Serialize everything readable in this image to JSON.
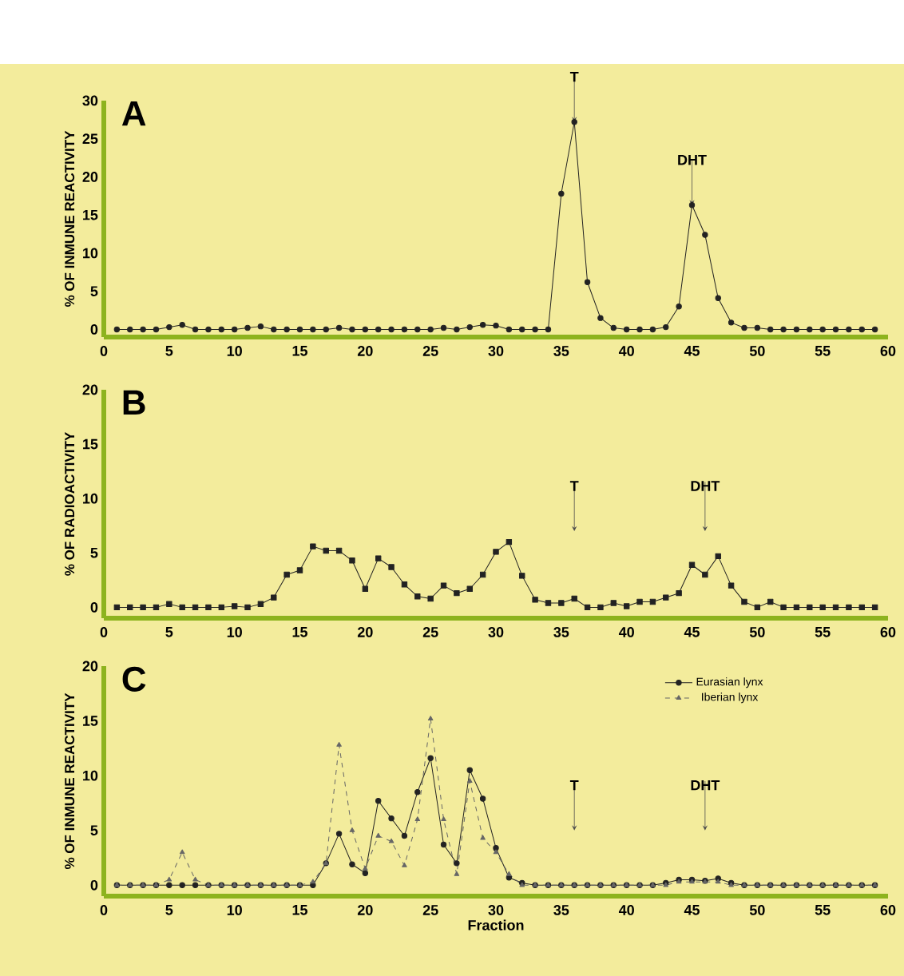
{
  "chart_data": [
    {
      "type": "line",
      "title": "A",
      "ylabel": "% OF INMUNE REACTIVITY",
      "x": [
        1,
        2,
        3,
        4,
        5,
        6,
        7,
        8,
        9,
        10,
        11,
        12,
        13,
        14,
        15,
        16,
        17,
        18,
        19,
        20,
        21,
        22,
        23,
        24,
        25,
        26,
        27,
        28,
        29,
        30,
        31,
        32,
        33,
        34,
        35,
        36,
        37,
        38,
        39,
        40,
        41,
        42,
        43,
        44,
        45,
        46,
        47,
        48,
        49,
        50,
        51,
        52,
        53,
        54,
        55,
        56,
        57,
        58,
        59
      ],
      "xlim": [
        0,
        60
      ],
      "xticks": [
        0,
        5,
        10,
        15,
        20,
        25,
        30,
        35,
        40,
        45,
        50,
        55,
        60
      ],
      "ylim": [
        -1,
        30
      ],
      "yticks": [
        0,
        5,
        10,
        15,
        20,
        25,
        30
      ],
      "series": [
        {
          "color": "#222222",
          "marker": "circle",
          "line_style": "solid",
          "values": [
            0,
            0,
            0,
            0,
            0.3,
            0.6,
            0,
            0,
            0,
            0,
            0.2,
            0.4,
            0,
            0,
            0,
            0,
            0,
            0.2,
            0,
            0,
            0,
            0,
            0,
            0,
            0,
            0.2,
            0,
            0.3,
            0.6,
            0.5,
            0,
            0,
            0,
            0,
            17.8,
            27.2,
            6.2,
            1.5,
            0.2,
            0,
            0,
            0,
            0.3,
            3,
            16.3,
            12.4,
            4.1,
            0.9,
            0.2,
            0.2,
            0,
            0,
            0,
            0,
            0,
            0,
            0,
            0,
            0
          ]
        }
      ],
      "annotations": [
        {
          "text": "T",
          "x": 36,
          "y": 27.2
        },
        {
          "text": "DHT",
          "x": 45,
          "y": 16.3
        }
      ]
    },
    {
      "type": "line",
      "title": "B",
      "ylabel": "% OF RADIOACTIVITY",
      "x": [
        1,
        2,
        3,
        4,
        5,
        6,
        7,
        8,
        9,
        10,
        11,
        12,
        13,
        14,
        15,
        16,
        17,
        18,
        19,
        20,
        21,
        22,
        23,
        24,
        25,
        26,
        27,
        28,
        29,
        30,
        31,
        32,
        33,
        34,
        35,
        36,
        37,
        38,
        39,
        40,
        41,
        42,
        43,
        44,
        45,
        46,
        47,
        48,
        49,
        50,
        51,
        52,
        53,
        54,
        55,
        56,
        57,
        58,
        59
      ],
      "xlim": [
        0,
        60
      ],
      "xticks": [
        0,
        5,
        10,
        15,
        20,
        25,
        30,
        35,
        40,
        45,
        50,
        55,
        60
      ],
      "ylim": [
        -1,
        20
      ],
      "yticks": [
        0,
        5,
        10,
        15,
        20
      ],
      "series": [
        {
          "color": "#222222",
          "marker": "square",
          "line_style": "solid",
          "values": [
            0,
            0,
            0,
            0,
            0.3,
            0,
            0,
            0,
            0,
            0.1,
            0,
            0.3,
            0.9,
            3.0,
            3.4,
            5.6,
            5.2,
            5.2,
            4.3,
            1.7,
            4.5,
            3.7,
            2.1,
            1.0,
            0.8,
            2.0,
            1.3,
            1.7,
            3.0,
            5.1,
            6.0,
            2.9,
            0.7,
            0.4,
            0.4,
            0.8,
            0,
            0,
            0.4,
            0.1,
            0.5,
            0.5,
            0.9,
            1.3,
            3.9,
            3.0,
            4.7,
            2.0,
            0.5,
            0,
            0.5,
            0,
            0,
            0,
            0,
            0,
            0,
            0,
            0
          ]
        }
      ],
      "annotations": [
        {
          "text": "T",
          "x": 36,
          "y": 7
        },
        {
          "text": "DHT",
          "x": 46,
          "y": 7
        }
      ]
    },
    {
      "type": "line",
      "title": "C",
      "ylabel": "% OF INMUNE REACTIVITY",
      "xlabel": "Fraction",
      "x": [
        1,
        2,
        3,
        4,
        5,
        6,
        7,
        8,
        9,
        10,
        11,
        12,
        13,
        14,
        15,
        16,
        17,
        18,
        19,
        20,
        21,
        22,
        23,
        24,
        25,
        26,
        27,
        28,
        29,
        30,
        31,
        32,
        33,
        34,
        35,
        36,
        37,
        38,
        39,
        40,
        41,
        42,
        43,
        44,
        45,
        46,
        47,
        48,
        49,
        50,
        51,
        52,
        53,
        54,
        55,
        56,
        57,
        58,
        59
      ],
      "xlim": [
        0,
        60
      ],
      "xticks": [
        0,
        5,
        10,
        15,
        20,
        25,
        30,
        35,
        40,
        45,
        50,
        55,
        60
      ],
      "ylim": [
        -1,
        20
      ],
      "yticks": [
        0,
        5,
        10,
        15,
        20
      ],
      "legend": "top right",
      "series": [
        {
          "name": "Eurasian lynx",
          "color": "#222222",
          "marker": "circle",
          "line_style": "solid",
          "values": [
            0,
            0,
            0,
            0,
            0,
            0,
            0,
            0,
            0,
            0,
            0,
            0,
            0,
            0,
            0,
            0,
            2,
            4.7,
            1.9,
            1.1,
            7.7,
            6.1,
            4.5,
            8.5,
            11.6,
            3.7,
            2,
            10.5,
            7.9,
            3.4,
            0.7,
            0.2,
            0,
            0,
            0,
            0,
            0,
            0,
            0,
            0,
            0,
            0,
            0.2,
            0.5,
            0.5,
            0.4,
            0.6,
            0.2,
            0,
            0,
            0,
            0,
            0,
            0,
            0,
            0,
            0,
            0,
            0
          ]
        },
        {
          "name": "Iberian lynx",
          "color": "#666666",
          "marker": "triangle",
          "line_style": "dashed",
          "values": [
            0,
            0,
            0,
            0,
            0.5,
            3,
            0.5,
            0,
            0,
            0,
            0,
            0,
            0,
            0,
            0,
            0.3,
            2,
            12.8,
            5,
            1.5,
            4.5,
            4,
            1.8,
            6,
            15.2,
            6,
            1,
            9.5,
            4.3,
            3,
            1,
            0,
            0,
            0,
            0,
            0,
            0,
            0,
            0,
            0,
            0,
            0,
            0,
            0.3,
            0.3,
            0.3,
            0.3,
            0,
            0,
            0,
            0,
            0,
            0,
            0,
            0,
            0,
            0,
            0,
            0
          ]
        }
      ],
      "annotations": [
        {
          "text": "T",
          "x": 36,
          "y": 5
        },
        {
          "text": "DHT",
          "x": 46,
          "y": 5
        }
      ]
    }
  ]
}
